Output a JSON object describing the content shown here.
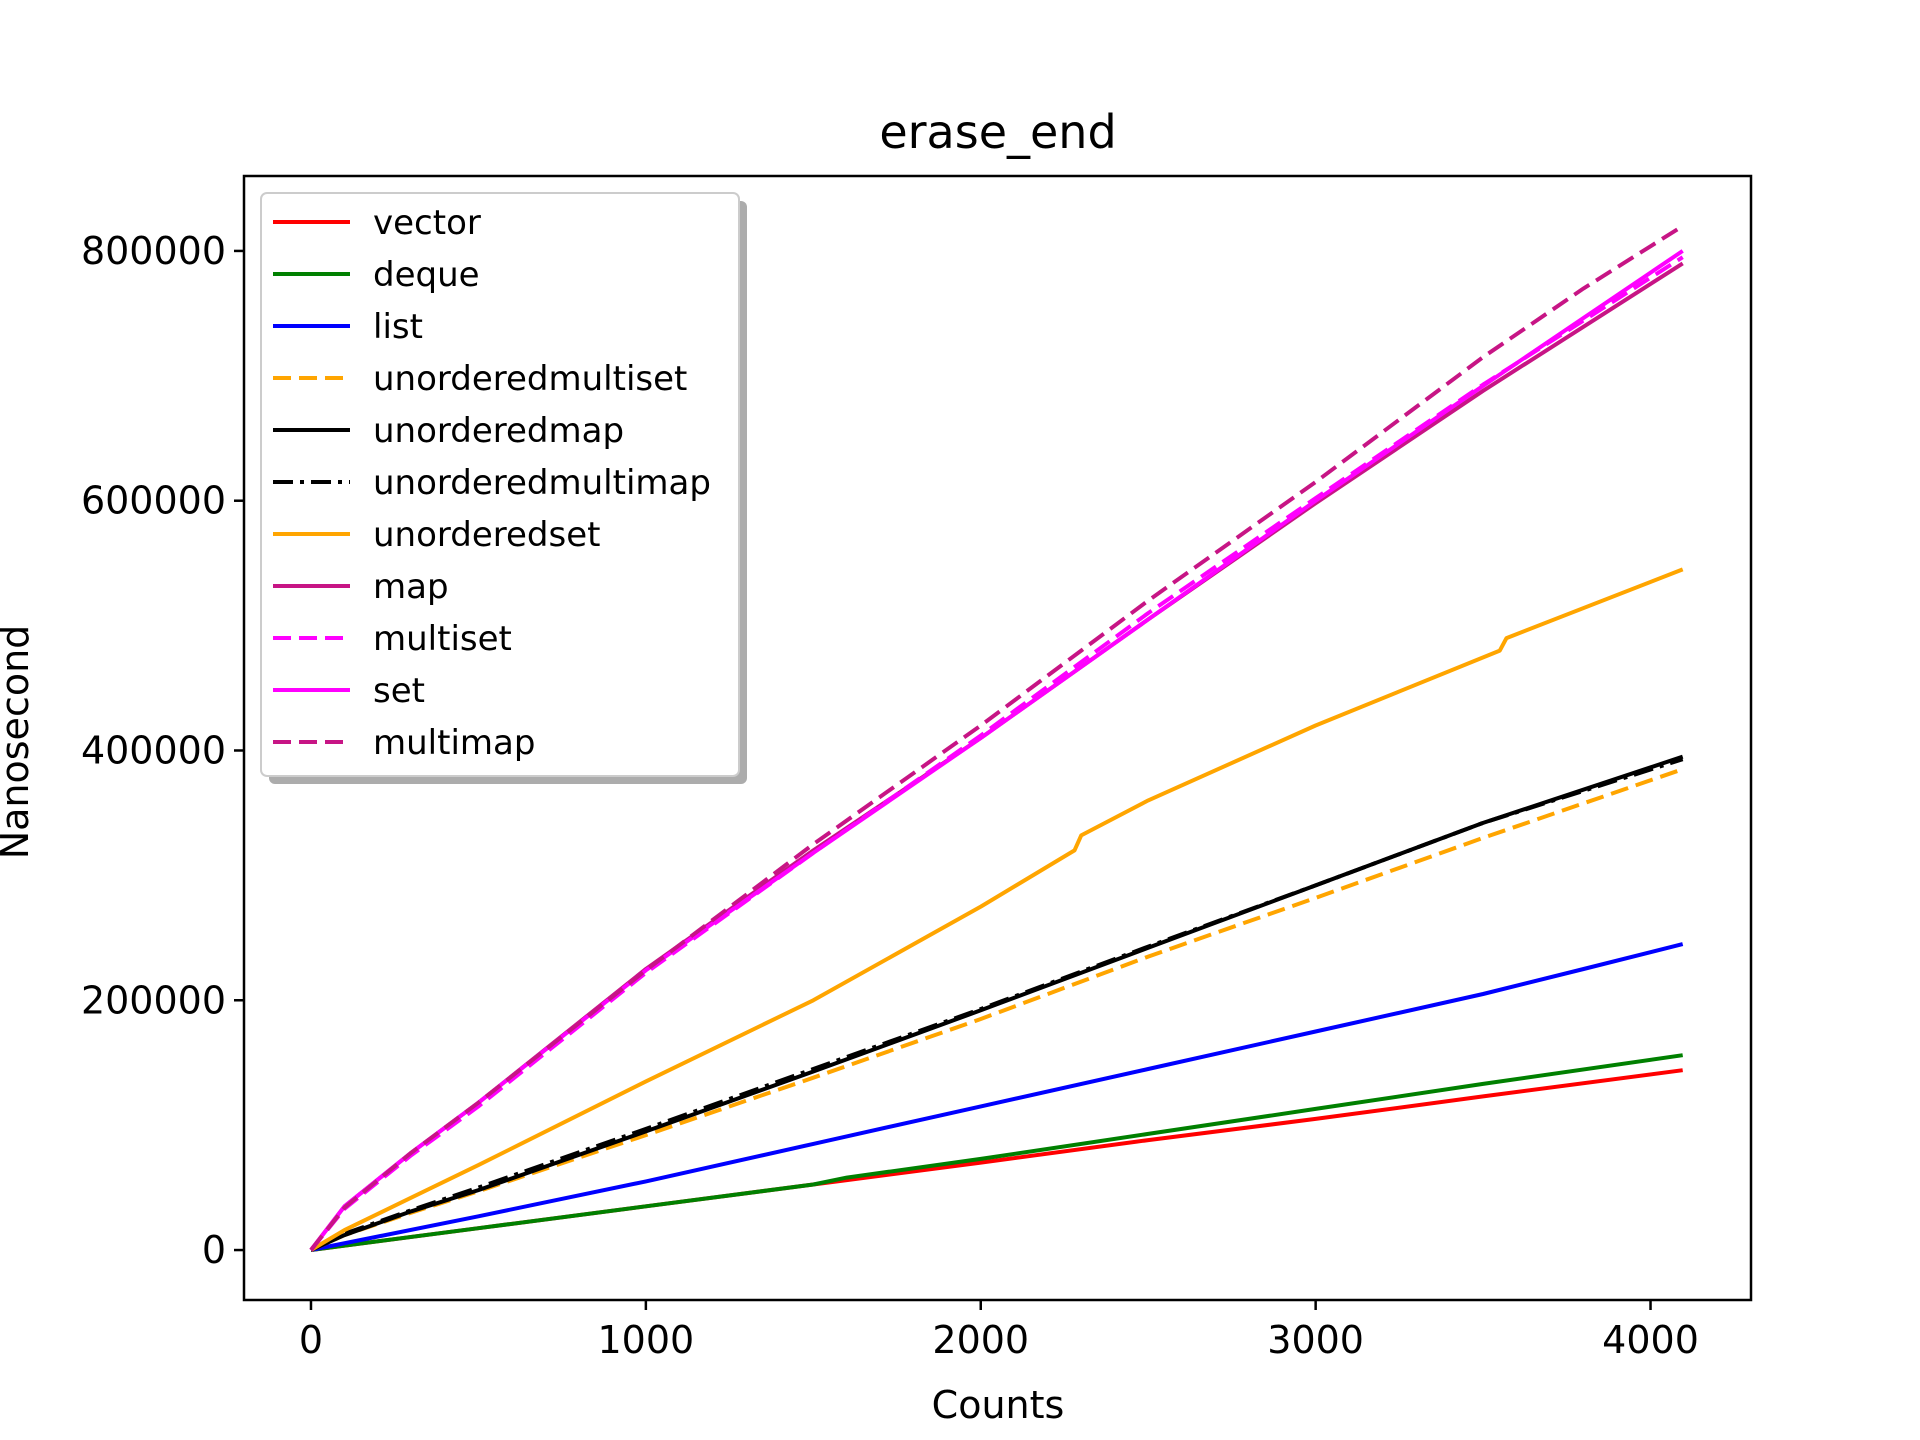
{
  "chart_data": {
    "type": "line",
    "title": "erase_end",
    "xlabel": "Counts",
    "ylabel": "Nanosecond",
    "xlim": [
      -200,
      4300
    ],
    "ylim": [
      -40000,
      860000
    ],
    "xticks": [
      0,
      1000,
      2000,
      3000,
      4000
    ],
    "xtick_labels": [
      "0",
      "1000",
      "2000",
      "3000",
      "4000"
    ],
    "yticks": [
      0,
      200000,
      400000,
      600000,
      800000
    ],
    "ytick_labels": [
      "0",
      "200000",
      "400000",
      "600000",
      "800000"
    ],
    "grid": false,
    "legend_position": "top-left",
    "series": [
      {
        "name": "vector",
        "color": "#ff0000",
        "dash": "solid",
        "x": [
          0,
          500,
          1000,
          1500,
          2000,
          2500,
          3000,
          3500,
          4096
        ],
        "y": [
          0,
          17500,
          35000,
          52500,
          70000,
          88000,
          105000,
          123000,
          144000
        ]
      },
      {
        "name": "deque",
        "color": "#008000",
        "dash": "solid",
        "x": [
          0,
          500,
          1000,
          1500,
          1600,
          2000,
          2500,
          3000,
          3500,
          4096
        ],
        "y": [
          0,
          17500,
          35000,
          52500,
          58000,
          73000,
          93000,
          113000,
          133000,
          156000
        ]
      },
      {
        "name": "list",
        "color": "#0000ff",
        "dash": "solid",
        "x": [
          0,
          500,
          1000,
          1500,
          2000,
          2500,
          3000,
          3500,
          3800,
          4096
        ],
        "y": [
          0,
          27000,
          55000,
          85000,
          115000,
          145000,
          175000,
          205000,
          225000,
          245000
        ]
      },
      {
        "name": "unorderedmultiset",
        "color": "#ffa500",
        "dash": "dashed",
        "x": [
          0,
          100,
          300,
          500,
          1000,
          1500,
          2000,
          2500,
          3000,
          3500,
          4096
        ],
        "y": [
          0,
          12000,
          30000,
          47000,
          92000,
          138000,
          185000,
          235000,
          282000,
          330000,
          385000
        ]
      },
      {
        "name": "unorderedmap",
        "color": "#000000",
        "dash": "solid",
        "x": [
          0,
          100,
          300,
          500,
          1000,
          1500,
          2000,
          2500,
          3000,
          3500,
          4096
        ],
        "y": [
          0,
          12000,
          31000,
          48000,
          95000,
          143000,
          192000,
          242000,
          292000,
          342000,
          395000
        ]
      },
      {
        "name": "unorderedmultimap",
        "color": "#000000",
        "dash": "dashdot",
        "x": [
          0,
          100,
          300,
          500,
          1000,
          1500,
          2000,
          2500,
          3000,
          3500,
          4096
        ],
        "y": [
          0,
          13000,
          32000,
          50000,
          97000,
          145000,
          193000,
          243000,
          292000,
          342000,
          393000
        ]
      },
      {
        "name": "unorderedset",
        "color": "#ffa500",
        "dash": "solid",
        "x": [
          0,
          100,
          300,
          500,
          1000,
          1500,
          2000,
          2280,
          2300,
          2500,
          3000,
          3550,
          3570,
          4096
        ],
        "y": [
          0,
          16000,
          42000,
          68000,
          135000,
          200000,
          275000,
          320000,
          332000,
          360000,
          420000,
          480000,
          490000,
          545000
        ]
      },
      {
        "name": "map",
        "color": "#c71585",
        "dash": "solid",
        "x": [
          0,
          100,
          300,
          500,
          1000,
          1500,
          2000,
          2500,
          3000,
          3500,
          4096
        ],
        "y": [
          0,
          35000,
          78000,
          118000,
          225000,
          320000,
          410000,
          505000,
          598000,
          688000,
          790000
        ]
      },
      {
        "name": "multiset",
        "color": "#ff00ff",
        "dash": "dashed",
        "x": [
          0,
          100,
          300,
          500,
          1000,
          1500,
          2000,
          2500,
          3000,
          3500,
          4096
        ],
        "y": [
          0,
          33000,
          76000,
          115000,
          222000,
          318000,
          412000,
          510000,
          602000,
          693000,
          795000
        ]
      },
      {
        "name": "set",
        "color": "#ff00ff",
        "dash": "solid",
        "x": [
          0,
          100,
          300,
          500,
          1000,
          1500,
          2000,
          2500,
          3000,
          3500,
          4096
        ],
        "y": [
          0,
          35000,
          78000,
          118000,
          224000,
          318000,
          410000,
          505000,
          600000,
          692000,
          800000
        ]
      },
      {
        "name": "multimap",
        "color": "#c71585",
        "dash": "dashed",
        "x": [
          0,
          100,
          300,
          500,
          1000,
          1500,
          2000,
          2150,
          2300,
          2500,
          3000,
          3500,
          3800,
          4096
        ],
        "y": [
          0,
          34000,
          78000,
          118000,
          224000,
          325000,
          420000,
          450000,
          480000,
          520000,
          615000,
          715000,
          770000,
          820000
        ]
      }
    ]
  }
}
